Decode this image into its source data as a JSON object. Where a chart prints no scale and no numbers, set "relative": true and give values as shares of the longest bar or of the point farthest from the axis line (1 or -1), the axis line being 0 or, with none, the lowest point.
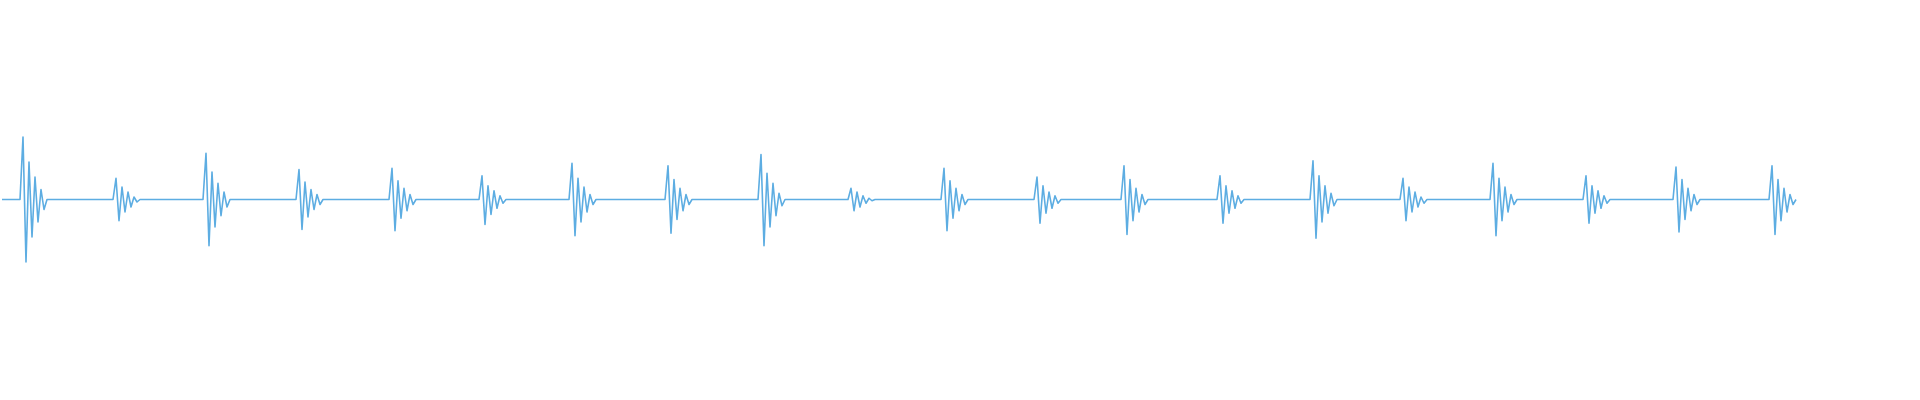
{
  "chart_data": {
    "type": "line",
    "relative": true,
    "color": "#5dade2",
    "categories": [
      null,
      null,
      null,
      null,
      null,
      null,
      null,
      null,
      null,
      null,
      null,
      null,
      null,
      null,
      null,
      null,
      null,
      null,
      null,
      null,
      null,
      null,
      null,
      null,
      null,
      null,
      null,
      null,
      null,
      null,
      null,
      null,
      null,
      null,
      null,
      null,
      null,
      null,
      null,
      null,
      null,
      null,
      null,
      null,
      null,
      null,
      null,
      null,
      null,
      null,
      null,
      null,
      null,
      null,
      null,
      null,
      null,
      null,
      null,
      null,
      null,
      null,
      null,
      null,
      null,
      null,
      null,
      null,
      null,
      null,
      null,
      null,
      null,
      null,
      null,
      null,
      null,
      null,
      null,
      null,
      null,
      null,
      null,
      null,
      null,
      null,
      null,
      null,
      null,
      null,
      null,
      null,
      null,
      null,
      null,
      null,
      null,
      null,
      null,
      null,
      null,
      null,
      null,
      null,
      null,
      null,
      null,
      null,
      null,
      null,
      null,
      null,
      null,
      null,
      null,
      null,
      null,
      null,
      null,
      null,
      null,
      null,
      null,
      null,
      null,
      null,
      null,
      null,
      null,
      null,
      null,
      null,
      null,
      null,
      null,
      null,
      null,
      null,
      null,
      null,
      null,
      null,
      null,
      null,
      null,
      null,
      null,
      null,
      null,
      null,
      null,
      null,
      null,
      null,
      null,
      null,
      null,
      null,
      null,
      null,
      null,
      null,
      null,
      null,
      null,
      null,
      null,
      null,
      null,
      null,
      null,
      null,
      null,
      null,
      null,
      null,
      null,
      null,
      null,
      null,
      null,
      null,
      null,
      null,
      null,
      null,
      null,
      null,
      null,
      null,
      null,
      null,
      null,
      null,
      null,
      null,
      null,
      null,
      null,
      null,
      null,
      null,
      null,
      null,
      null,
      null,
      null,
      null,
      null,
      null,
      null,
      null,
      null,
      null,
      null,
      null,
      null,
      null,
      null,
      null,
      null,
      null,
      null,
      null,
      null,
      null,
      null,
      null,
      null,
      null,
      null,
      null,
      null,
      null,
      null,
      null,
      null,
      null,
      null,
      null,
      null,
      null,
      null,
      null,
      null,
      null,
      null,
      null,
      null,
      null,
      null,
      null,
      null,
      null,
      null,
      null,
      null,
      null,
      null,
      null,
      null,
      null,
      null,
      null,
      null,
      null,
      null,
      null,
      null,
      null,
      null,
      null,
      null,
      null,
      null,
      null,
      null,
      null,
      null,
      null,
      null,
      null,
      null,
      null,
      null,
      null,
      null,
      null,
      null,
      null,
      null,
      null,
      null,
      null,
      null,
      null,
      null,
      null,
      null,
      null,
      null,
      null,
      null,
      null,
      null,
      null,
      null,
      null,
      null,
      null,
      null,
      null,
      null,
      null,
      null,
      null,
      null,
      null,
      null,
      null,
      null,
      null,
      null,
      null,
      null,
      null,
      null,
      null,
      null,
      null,
      null,
      null,
      null,
      null,
      null,
      null,
      null,
      null,
      null,
      null,
      null,
      null,
      null,
      null,
      null,
      null,
      null,
      null,
      null,
      null,
      null,
      null,
      null,
      null,
      null,
      null,
      null,
      null,
      null,
      null,
      null,
      null,
      null,
      null,
      null,
      null,
      null,
      null,
      null,
      null,
      null,
      null,
      null,
      null,
      null,
      null,
      null,
      null,
      null,
      null,
      null,
      null,
      null,
      null,
      null,
      null,
      null,
      null,
      null,
      null,
      null,
      null,
      null,
      null,
      null,
      null,
      null,
      null,
      null,
      null,
      null,
      null,
      null,
      null,
      null,
      null,
      null,
      null,
      null,
      null,
      null,
      null,
      null,
      null,
      null,
      null,
      null,
      null,
      null,
      null,
      null,
      null,
      null,
      null,
      null,
      null,
      null,
      null,
      null,
      null,
      null,
      null,
      null,
      null,
      null,
      null,
      null,
      null,
      null,
      null,
      null,
      null,
      null,
      null,
      null,
      null,
      null,
      null,
      null,
      null,
      null,
      null,
      null,
      null,
      null,
      null,
      null,
      null,
      null,
      null,
      null,
      null,
      null,
      null,
      null,
      null,
      null,
      null,
      null,
      null,
      null,
      null,
      null,
      null,
      null,
      null,
      null,
      null,
      null,
      null,
      null,
      null,
      null,
      null,
      null,
      null,
      null,
      null,
      null,
      null,
      null,
      null,
      null,
      null,
      null,
      null,
      null,
      null,
      null,
      null,
      null,
      null,
      null,
      null,
      null,
      null,
      null,
      null,
      null,
      null,
      null,
      null,
      null,
      null,
      null,
      null,
      null,
      null,
      null,
      null,
      null,
      null,
      null,
      null,
      null,
      null,
      null,
      null,
      null,
      null,
      null,
      null,
      null,
      null,
      null,
      null,
      null,
      null,
      null,
      null,
      null,
      null,
      null,
      null,
      null,
      null,
      null,
      null,
      null,
      null,
      null,
      null,
      null,
      null,
      null,
      null,
      null,
      null,
      null,
      null,
      null,
      null,
      null,
      null,
      null,
      null,
      null,
      null,
      null,
      null,
      null,
      null,
      null,
      null,
      null,
      null,
      null,
      null,
      null,
      null,
      null,
      null,
      null,
      null,
      null,
      null,
      null,
      null,
      null,
      null,
      null,
      null,
      null,
      null,
      null,
      null,
      null,
      null,
      null
    ],
    "values": [
      0.5,
      0.5,
      0.5,
      0.5,
      0.5,
      0.5,
      0.5,
      1,
      0,
      0.8,
      0.2,
      0.68,
      0.32,
      0.58,
      0.42,
      0.5,
      0.5,
      0.5,
      0.5,
      0.5,
      0.5,
      0.5,
      0.5,
      0.5,
      0.5,
      0.5,
      0.5,
      0.5,
      0.5,
      0.5,
      0.5,
      0.5,
      0.5,
      0.5,
      0.5,
      0.5,
      0.5,
      0.5,
      0.67,
      0.33,
      0.6,
      0.4,
      0.56,
      0.44,
      0.52,
      0.48,
      0.5,
      0.5,
      0.5,
      0.5,
      0.5,
      0.5,
      0.5,
      0.5,
      0.5,
      0.5,
      0.5,
      0.5,
      0.5,
      0.5,
      0.5,
      0.5,
      0.5,
      0.5,
      0.5,
      0.5,
      0.5,
      0.5,
      0.87,
      0.13,
      0.72,
      0.28,
      0.63,
      0.37,
      0.56,
      0.44,
      0.5,
      0.5,
      0.5,
      0.5,
      0.5,
      0.5,
      0.5,
      0.5,
      0.5,
      0.5,
      0.5,
      0.5,
      0.5,
      0.5,
      0.5,
      0.5,
      0.5,
      0.5,
      0.5,
      0.5,
      0.5,
      0.5,
      0.5,
      0.74,
      0.26,
      0.64,
      0.36,
      0.58,
      0.42,
      0.54,
      0.46,
      0.5,
      0.5,
      0.5,
      0.5,
      0.5,
      0.5,
      0.5,
      0.5,
      0.5,
      0.5,
      0.5,
      0.5,
      0.5,
      0.5,
      0.5,
      0.5,
      0.5,
      0.5,
      0.5,
      0.5,
      0.5,
      0.5,
      0.5,
      0.75,
      0.25,
      0.65,
      0.35,
      0.59,
      0.41,
      0.54,
      0.46,
      0.5,
      0.5,
      0.5,
      0.5,
      0.5,
      0.5,
      0.5,
      0.5,
      0.5,
      0.5,
      0.5,
      0.5,
      0.5,
      0.5,
      0.5,
      0.5,
      0.5,
      0.5,
      0.5,
      0.5,
      0.5,
      0.5,
      0.69,
      0.3,
      0.61,
      0.38,
      0.57,
      0.43,
      0.53,
      0.47,
      0.5,
      0.5,
      0.5,
      0.5,
      0.5,
      0.5,
      0.5,
      0.5,
      0.5,
      0.5,
      0.5,
      0.5,
      0.5,
      0.5,
      0.5,
      0.5,
      0.5,
      0.5,
      0.5,
      0.5,
      0.5,
      0.5,
      0.79,
      0.21,
      0.67,
      0.32,
      0.6,
      0.4,
      0.54,
      0.46,
      0.5,
      0.5,
      0.5,
      0.5,
      0.5,
      0.5,
      0.5,
      0.5,
      0.5,
      0.5,
      0.5,
      0.5,
      0.5,
      0.5,
      0.5,
      0.5,
      0.5,
      0.5,
      0.5,
      0.5,
      0.5,
      0.5,
      0.5,
      0.5,
      0.77,
      0.23,
      0.66,
      0.34,
      0.59,
      0.41,
      0.54,
      0.46,
      0.5,
      0.5,
      0.5,
      0.5,
      0.5,
      0.5,
      0.5,
      0.5,
      0.5,
      0.5,
      0.5,
      0.5,
      0.5,
      0.5,
      0.5,
      0.5,
      0.5,
      0.5,
      0.5,
      0.5,
      0.5,
      0.5,
      0.5,
      0.86,
      0.13,
      0.71,
      0.28,
      0.63,
      0.37,
      0.55,
      0.45,
      0.5,
      0.5,
      0.5,
      0.5,
      0.5,
      0.5,
      0.5,
      0.5,
      0.5,
      0.5,
      0.5,
      0.5,
      0.5,
      0.5,
      0.5,
      0.5,
      0.5,
      0.5,
      0.5,
      0.5,
      0.5,
      0.5,
      0.59,
      0.41,
      0.56,
      0.44,
      0.53,
      0.47,
      0.51,
      0.49,
      0.5,
      0.5,
      0.5,
      0.5,
      0.5,
      0.5,
      0.5,
      0.5,
      0.5,
      0.5,
      0.5,
      0.5,
      0.5,
      0.5,
      0.5,
      0.5,
      0.5,
      0.5,
      0.5,
      0.5,
      0.5,
      0.5,
      0.5,
      0.75,
      0.25,
      0.65,
      0.35,
      0.59,
      0.41,
      0.54,
      0.46,
      0.5,
      0.5,
      0.5,
      0.5,
      0.5,
      0.5,
      0.5,
      0.5,
      0.5,
      0.5,
      0.5,
      0.5,
      0.5,
      0.5,
      0.5,
      0.5,
      0.5,
      0.5,
      0.5,
      0.5,
      0.5,
      0.5,
      0.5,
      0.68,
      0.31,
      0.61,
      0.39,
      0.56,
      0.43,
      0.53,
      0.47,
      0.5,
      0.5,
      0.5,
      0.5,
      0.5,
      0.5,
      0.5,
      0.5,
      0.5,
      0.5,
      0.5,
      0.5,
      0.5,
      0.5,
      0.5,
      0.5,
      0.5,
      0.5,
      0.5,
      0.5,
      0.5,
      0.77,
      0.22,
      0.66,
      0.33,
      0.59,
      0.4,
      0.54,
      0.46,
      0.5,
      0.5,
      0.5,
      0.5,
      0.5,
      0.5,
      0.5,
      0.5,
      0.5,
      0.5,
      0.5,
      0.5,
      0.5,
      0.5,
      0.5,
      0.5,
      0.5,
      0.5,
      0.5,
      0.5,
      0.5,
      0.5,
      0.5,
      0.5,
      0.69,
      0.31,
      0.61,
      0.39,
      0.57,
      0.43,
      0.53,
      0.47,
      0.5,
      0.5,
      0.5,
      0.5,
      0.5,
      0.5,
      0.5,
      0.5,
      0.5,
      0.5,
      0.5,
      0.5,
      0.5,
      0.5,
      0.5,
      0.5,
      0.5,
      0.5,
      0.5,
      0.5,
      0.5,
      0.5,
      0.5,
      0.81,
      0.19,
      0.69,
      0.32,
      0.61,
      0.39,
      0.55,
      0.45,
      0.5,
      0.5,
      0.5,
      0.5,
      0.5,
      0.5,
      0.5,
      0.5,
      0.5,
      0.5,
      0.5,
      0.5,
      0.5,
      0.5,
      0.5,
      0.5,
      0.5,
      0.5,
      0.5,
      0.5,
      0.5,
      0.5,
      0.67,
      0.33,
      0.6,
      0.4,
      0.56,
      0.44,
      0.52,
      0.47,
      0.5,
      0.5,
      0.5,
      0.5,
      0.5,
      0.5,
      0.5,
      0.5,
      0.5,
      0.5,
      0.5,
      0.5,
      0.5,
      0.5,
      0.5,
      0.5,
      0.5,
      0.5,
      0.5,
      0.5,
      0.5,
      0.5,
      0.79,
      0.21,
      0.67,
      0.33,
      0.6,
      0.4,
      0.54,
      0.46,
      0.5,
      0.5,
      0.5,
      0.5,
      0.5,
      0.5,
      0.5,
      0.5,
      0.5,
      0.5,
      0.5,
      0.5,
      0.5,
      0.5,
      0.5,
      0.5,
      0.5,
      0.5,
      0.5,
      0.5,
      0.5,
      0.5,
      0.5,
      0.69,
      0.31,
      0.61,
      0.39,
      0.57,
      0.43,
      0.53,
      0.47,
      0.5,
      0.5,
      0.5,
      0.5,
      0.5,
      0.5,
      0.5,
      0.5,
      0.5,
      0.5,
      0.5,
      0.5,
      0.5,
      0.5,
      0.5,
      0.5,
      0.5,
      0.5,
      0.5,
      0.5,
      0.5,
      0.5,
      0.76,
      0.24,
      0.66,
      0.34,
      0.59,
      0.41,
      0.54,
      0.46,
      0.5,
      0.5,
      0.5,
      0.5,
      0.5,
      0.5,
      0.5,
      0.5,
      0.5,
      0.5,
      0.5,
      0.5,
      0.5,
      0.5,
      0.5,
      0.5,
      0.5,
      0.5,
      0.5,
      0.5,
      0.5,
      0.5,
      0.5,
      0.5,
      0.77,
      0.22,
      0.66,
      0.33,
      0.59,
      0.4,
      0.54,
      0.46,
      0.5
    ]
  }
}
